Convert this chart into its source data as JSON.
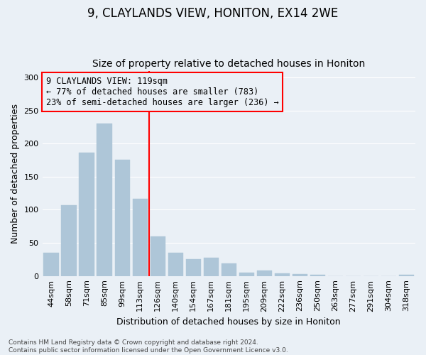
{
  "title": "9, CLAYLANDS VIEW, HONITON, EX14 2WE",
  "subtitle": "Size of property relative to detached houses in Honiton",
  "xlabel": "Distribution of detached houses by size in Honiton",
  "ylabel": "Number of detached properties",
  "categories": [
    "44sqm",
    "58sqm",
    "71sqm",
    "85sqm",
    "99sqm",
    "113sqm",
    "126sqm",
    "140sqm",
    "154sqm",
    "167sqm",
    "181sqm",
    "195sqm",
    "209sqm",
    "222sqm",
    "236sqm",
    "250sqm",
    "263sqm",
    "277sqm",
    "291sqm",
    "304sqm",
    "318sqm"
  ],
  "values": [
    35,
    107,
    186,
    230,
    176,
    116,
    60,
    35,
    25,
    27,
    19,
    5,
    8,
    4,
    3,
    2,
    0,
    0,
    0,
    0,
    2
  ],
  "bar_color": "#aec6d8",
  "bar_edge_color": "#aec6d8",
  "vline_color": "red",
  "annotation_text": "9 CLAYLANDS VIEW: 119sqm\n← 77% of detached houses are smaller (783)\n23% of semi-detached houses are larger (236) →",
  "annotation_box_color": "red",
  "annotation_text_color": "black",
  "ylim": [
    0,
    310
  ],
  "yticks": [
    0,
    50,
    100,
    150,
    200,
    250,
    300
  ],
  "footnote": "Contains HM Land Registry data © Crown copyright and database right 2024.\nContains public sector information licensed under the Open Government Licence v3.0.",
  "background_color": "#eaf0f6",
  "grid_color": "white",
  "title_fontsize": 12,
  "subtitle_fontsize": 10,
  "axis_label_fontsize": 9,
  "tick_fontsize": 8,
  "annotation_fontsize": 8.5,
  "footnote_fontsize": 6.5
}
